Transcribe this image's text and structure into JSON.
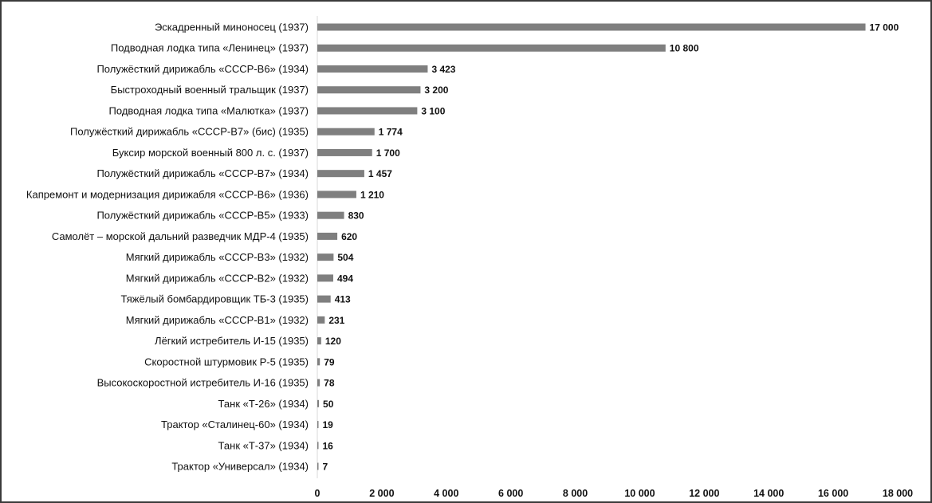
{
  "chart_data": {
    "type": "bar",
    "orientation": "horizontal",
    "categories": [
      "Эскадренный миноносец (1937)",
      "Подводная лодка типа «Ленинец» (1937)",
      "Полужёсткий дирижабль «СССР-В6» (1934)",
      "Быстроходный военный тральщик (1937)",
      "Подводная лодка типа «Малютка» (1937)",
      "Полужёсткий дирижабль «СССР-В7» (бис)  (1935)",
      "Буксир морской военный 800 л. с. (1937)",
      "Полужёсткий дирижабль «СССР-В7» (1934)",
      "Капремонт и модернизация дирижабля «СССР-В6» (1936)",
      "Полужёсткий дирижабль «СССР-В5» (1933)",
      "Самолёт – морской дальний разведчик МДР-4 (1935)",
      "Мягкий дирижабль «СССР-В3» (1932)",
      "Мягкий дирижабль «СССР-В2» (1932)",
      "Тяжёлый бомбардировщик ТБ-3 (1935)",
      "Мягкий дирижабль «СССР-В1» (1932)",
      "Лёгкий истребитель И-15 (1935)",
      "Скоростной штурмовик Р-5 (1935)",
      "Высокоскоростной истребитель И-16 (1935)",
      "Танк «Т-26» (1934)",
      "Трактор «Сталинец-60» (1934)",
      "Танк «Т-37» (1934)",
      "Трактор «Универсал» (1934)"
    ],
    "values": [
      17000,
      10800,
      3423,
      3200,
      3100,
      1774,
      1700,
      1457,
      1210,
      830,
      620,
      504,
      494,
      413,
      231,
      120,
      79,
      78,
      50,
      19,
      16,
      7
    ],
    "value_labels": [
      "17 000",
      "10 800",
      "3 423",
      "3 200",
      "3 100",
      "1 774",
      "1 700",
      "1 457",
      "1 210",
      "830",
      "620",
      "504",
      "494",
      "413",
      "231",
      "120",
      "79",
      "78",
      "50",
      "19",
      "16",
      "7"
    ],
    "xlim": [
      0,
      18000
    ],
    "x_ticks": [
      0,
      2000,
      4000,
      6000,
      8000,
      10000,
      12000,
      14000,
      16000,
      18000
    ],
    "x_tick_labels": [
      "0",
      "2 000",
      "4 000",
      "6 000",
      "8 000",
      "10 000",
      "12 000",
      "14 000",
      "16 000",
      "18 000"
    ],
    "grid": false,
    "legend": "none",
    "bar_color": "#7f7f7f",
    "title": "",
    "xlabel": "",
    "ylabel": ""
  }
}
